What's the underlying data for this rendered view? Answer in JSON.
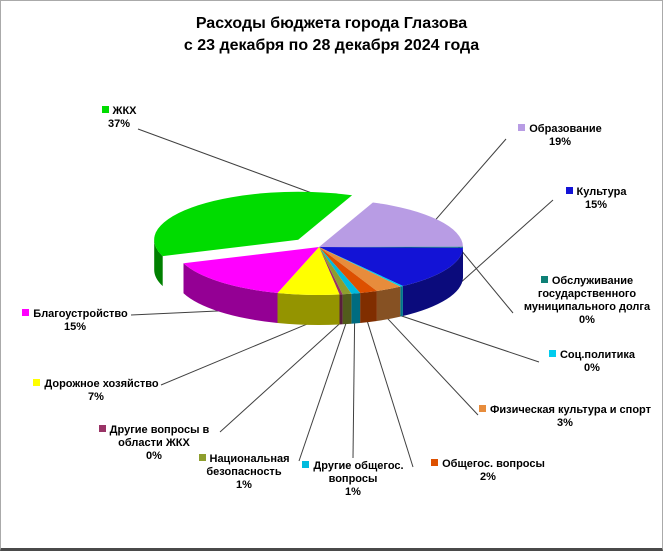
{
  "title": {
    "line1": "Расходы бюджета города Глазова",
    "line2": "с 23 декабря по 28 декабря 2024 года"
  },
  "chart_data": {
    "type": "pie",
    "style": "3d-exploded",
    "title": "Расходы бюджета города Глазова с 23 декабря по 28 декабря 2024 года",
    "unit": "%",
    "direction": "clockwise",
    "start_angle_deg": 22,
    "exploded_label": "ЖКХ",
    "background": "#FFFFFF",
    "leader_line_color": "#404040",
    "items": [
      {
        "label": "Образование",
        "value": 19,
        "pct_label": "19%",
        "color": "#B89CE4"
      },
      {
        "label": "Обслуживание государственного муниципального долга",
        "value": 0,
        "pct_label": "0%",
        "color": "#0E8076"
      },
      {
        "label": "Культура",
        "value": 15,
        "pct_label": "15%",
        "color": "#1313D6"
      },
      {
        "label": "Соц.политика",
        "value": 0,
        "pct_label": "0%",
        "color": "#00CCEE"
      },
      {
        "label": "Физическая культура и спорт",
        "value": 3,
        "pct_label": "3%",
        "color": "#E78C3C"
      },
      {
        "label": "Общегос. вопросы",
        "value": 2,
        "pct_label": "2%",
        "color": "#DD5000"
      },
      {
        "label": "Другие общегос. вопросы",
        "value": 1,
        "pct_label": "1%",
        "color": "#00BBDD"
      },
      {
        "label": "Национальная безопасность",
        "value": 1,
        "pct_label": "1%",
        "color": "#8E9E2E"
      },
      {
        "label": "Другие вопросы в области ЖКХ",
        "value": 0,
        "pct_label": "0%",
        "color": "#993366"
      },
      {
        "label": "Дорожное хозяйство",
        "value": 7,
        "pct_label": "7%",
        "color": "#FFFF00"
      },
      {
        "label": "Благоустройство",
        "value": 15,
        "pct_label": "15%",
        "color": "#FF00FF"
      },
      {
        "label": "ЖКХ",
        "value": 37,
        "pct_label": "37%",
        "color": "#00DC00"
      }
    ]
  }
}
